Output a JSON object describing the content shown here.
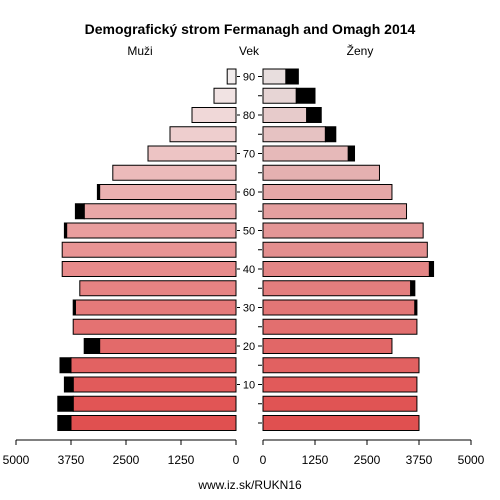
{
  "chart_data": {
    "type": "bar",
    "title": "Demografický strom Fermanagh and Omagh 2014",
    "left_label": "Muži",
    "center_label": "Vek",
    "right_label": "Ženy",
    "source": "www.iz.sk/RUKN16",
    "age_groups": [
      "0-4",
      "5-9",
      "10-14",
      "15-19",
      "20-24",
      "25-29",
      "30-34",
      "35-39",
      "40-44",
      "45-49",
      "50-54",
      "55-59",
      "60-64",
      "65-69",
      "70-74",
      "75-79",
      "80-84",
      "85-89",
      "90+"
    ],
    "age_ticks": [
      "10",
      "20",
      "30",
      "40",
      "50",
      "60",
      "70",
      "80",
      "90"
    ],
    "value_ticks": [
      "5000",
      "3750",
      "2500",
      "1250",
      "0",
      "1250",
      "2500",
      "3750",
      "5000"
    ],
    "xlim": [
      0,
      5000
    ],
    "series": [
      {
        "name": "Muži",
        "values": [
          3750,
          3700,
          3700,
          3750,
          3100,
          3700,
          3650,
          3550,
          3950,
          3950,
          3850,
          3450,
          3100,
          2800,
          2000,
          1500,
          1000,
          500,
          200
        ],
        "surplus": [
          300,
          350,
          200,
          250,
          350,
          0,
          50,
          0,
          0,
          0,
          50,
          200,
          50,
          0,
          0,
          0,
          0,
          0,
          0
        ]
      },
      {
        "name": "Ženy",
        "values": [
          3750,
          3700,
          3700,
          3750,
          3100,
          3700,
          3650,
          3550,
          4000,
          3950,
          3850,
          3450,
          3100,
          2800,
          2050,
          1500,
          1050,
          800,
          550
        ],
        "surplus": [
          0,
          0,
          0,
          0,
          0,
          0,
          50,
          100,
          100,
          0,
          0,
          0,
          0,
          0,
          150,
          250,
          350,
          450,
          300
        ]
      }
    ],
    "surplus_color": "#000000",
    "bar_color_young": "#e05050",
    "bar_color_old_male": "#f2eded",
    "bar_color_old_female": "#e8dede"
  }
}
